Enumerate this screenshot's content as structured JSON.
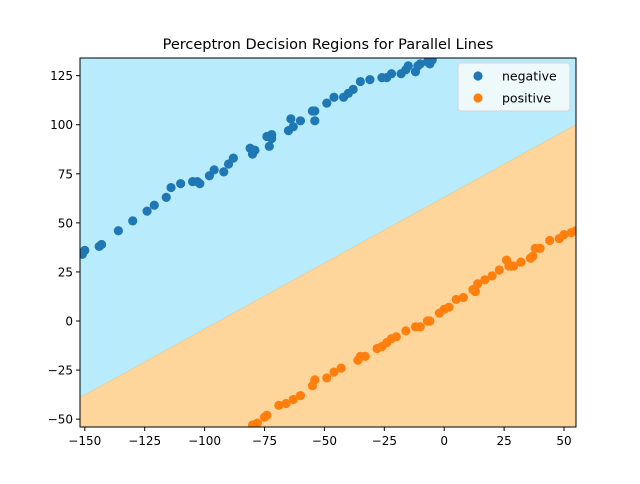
{
  "chart_data": {
    "type": "scatter",
    "title": "Perceptron Decision Regions for Parallel Lines",
    "xlabel": "",
    "ylabel": "",
    "xlim": [
      -152,
      55
    ],
    "ylim": [
      -54,
      134
    ],
    "xticks": [
      -150,
      -125,
      -100,
      -75,
      -50,
      -25,
      0,
      25,
      50
    ],
    "yticks": [
      -50,
      -25,
      0,
      25,
      50,
      75,
      100,
      125
    ],
    "xtick_labels": [
      "−150",
      "−125",
      "−100",
      "−75",
      "−50",
      "−25",
      "0",
      "25",
      "50"
    ],
    "ytick_labels": [
      "−50",
      "−25",
      "0",
      "25",
      "50",
      "75",
      "100",
      "125"
    ],
    "grid": false,
    "legend_position": "top-right",
    "decision_boundary": {
      "x": [
        -152,
        55
      ],
      "y": [
        -39,
        100
      ]
    },
    "regions": [
      {
        "label": "negative",
        "side": "above",
        "color": "#b8ecfc"
      },
      {
        "label": "positive",
        "side": "below",
        "color": "#fed69b"
      }
    ],
    "series": [
      {
        "name": "negative",
        "color": "#1f77b4",
        "points": [
          [
            -151,
            34
          ],
          [
            -150,
            36
          ],
          [
            -144,
            38
          ],
          [
            -143,
            39
          ],
          [
            -136,
            46
          ],
          [
            -130,
            51
          ],
          [
            -124,
            56
          ],
          [
            -121,
            59
          ],
          [
            -116,
            63
          ],
          [
            -114,
            68
          ],
          [
            -110,
            70
          ],
          [
            -105,
            71
          ],
          [
            -103,
            71
          ],
          [
            -102,
            70
          ],
          [
            -98,
            74
          ],
          [
            -96,
            77
          ],
          [
            -92,
            76
          ],
          [
            -90,
            80
          ],
          [
            -88,
            83
          ],
          [
            -81,
            88
          ],
          [
            -80,
            85
          ],
          [
            -79,
            87
          ],
          [
            -74,
            94
          ],
          [
            -73,
            89
          ],
          [
            -72,
            93
          ],
          [
            -72,
            95
          ],
          [
            -65,
            97
          ],
          [
            -64,
            103
          ],
          [
            -63,
            99
          ],
          [
            -60,
            102
          ],
          [
            -55,
            107
          ],
          [
            -54,
            102
          ],
          [
            -54,
            107
          ],
          [
            -49,
            111
          ],
          [
            -46,
            114
          ],
          [
            -42,
            114
          ],
          [
            -40,
            116
          ],
          [
            -38,
            118
          ],
          [
            -35,
            122
          ],
          [
            -31,
            123
          ],
          [
            -26,
            124
          ],
          [
            -24,
            124
          ],
          [
            -22,
            126
          ],
          [
            -18,
            126
          ],
          [
            -16,
            128
          ],
          [
            -15,
            130
          ],
          [
            -12,
            127
          ],
          [
            -11,
            130
          ],
          [
            -10,
            131
          ],
          [
            -7,
            132
          ],
          [
            -6,
            131
          ],
          [
            -5,
            133
          ]
        ]
      },
      {
        "name": "positive",
        "color": "#ff7f0e",
        "points": [
          [
            -80,
            -53
          ],
          [
            -78,
            -52
          ],
          [
            -75,
            -49
          ],
          [
            -74,
            -48
          ],
          [
            -69,
            -43
          ],
          [
            -66,
            -42
          ],
          [
            -63,
            -40
          ],
          [
            -60,
            -38
          ],
          [
            -55,
            -33
          ],
          [
            -54,
            -30
          ],
          [
            -49,
            -29
          ],
          [
            -46,
            -26
          ],
          [
            -43,
            -24
          ],
          [
            -36,
            -20
          ],
          [
            -35,
            -18
          ],
          [
            -33,
            -18
          ],
          [
            -28,
            -14
          ],
          [
            -26,
            -13
          ],
          [
            -24,
            -11
          ],
          [
            -22,
            -9
          ],
          [
            -20,
            -8
          ],
          [
            -16,
            -5
          ],
          [
            -12,
            -3
          ],
          [
            -10,
            -3
          ],
          [
            -7,
            0
          ],
          [
            -6,
            0
          ],
          [
            -2,
            4
          ],
          [
            0,
            6
          ],
          [
            2,
            7
          ],
          [
            5,
            11
          ],
          [
            8,
            12
          ],
          [
            12,
            16
          ],
          [
            13,
            15
          ],
          [
            14,
            19
          ],
          [
            17,
            21
          ],
          [
            20,
            23
          ],
          [
            23,
            26
          ],
          [
            26,
            31
          ],
          [
            27,
            28
          ],
          [
            28,
            28
          ],
          [
            29,
            28
          ],
          [
            32,
            30
          ],
          [
            36,
            32
          ],
          [
            37,
            33
          ],
          [
            38,
            37
          ],
          [
            40,
            37
          ],
          [
            44,
            41
          ],
          [
            48,
            42
          ],
          [
            50,
            44
          ],
          [
            53,
            45
          ],
          [
            55,
            46
          ]
        ]
      }
    ]
  }
}
